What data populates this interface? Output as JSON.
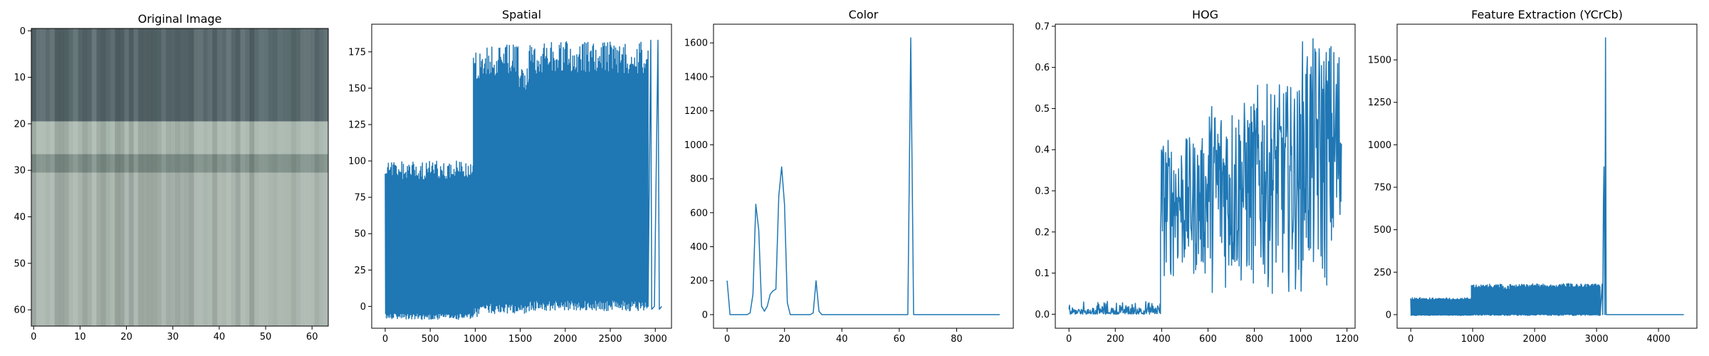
{
  "colors": {
    "series": "#1f77b4",
    "axis": "#000000",
    "background": "#ffffff"
  },
  "chart_data": [
    {
      "type": "image",
      "title": "Original Image",
      "xlim": [
        -0.5,
        63.5
      ],
      "ylim": [
        63.5,
        -0.5
      ],
      "xticks": [
        0,
        10,
        20,
        30,
        40,
        50,
        60
      ],
      "yticks": [
        0,
        10,
        20,
        30,
        40,
        50,
        60
      ],
      "image_bands": [
        {
          "y_from": 0,
          "y_to": 20,
          "color": "#56676b"
        },
        {
          "y_from": 20,
          "y_to": 27,
          "color": "#aab9b0"
        },
        {
          "y_from": 27,
          "y_to": 31,
          "color": "#7f9089"
        },
        {
          "y_from": 31,
          "y_to": 64,
          "color": "#a9b6ae"
        }
      ]
    },
    {
      "type": "line",
      "title": "Spatial",
      "xlim": [
        -150,
        3180
      ],
      "ylim": [
        -15,
        194
      ],
      "xticks": [
        0,
        500,
        1000,
        1500,
        2000,
        2500,
        3000
      ],
      "yticks": [
        0,
        25,
        50,
        75,
        100,
        125,
        150,
        175
      ],
      "series": [
        {
          "kind": "oscillating_band",
          "segments": [
            {
              "x": [
                0,
                980
              ],
              "low": -9,
              "high": 100
            },
            {
              "x": [
                980,
                1070
              ],
              "low": -7,
              "high": 178
            },
            {
              "x": [
                1070,
                1480
              ],
              "low": -5,
              "high": 180
            },
            {
              "x": [
                1480,
                1600
              ],
              "low": -5,
              "high": 168
            },
            {
              "x": [
                1600,
                2920
              ],
              "low": -3,
              "high": 182
            }
          ],
          "tail": [
            [
              2920,
              0
            ],
            [
              2950,
              183
            ],
            [
              2960,
              -2
            ],
            [
              2990,
              0
            ],
            [
              3030,
              183
            ],
            [
              3045,
              -2
            ],
            [
              3072,
              0
            ]
          ]
        }
      ]
    },
    {
      "type": "line",
      "title": "Color",
      "xlim": [
        -4.75,
        99.75
      ],
      "ylim": [
        -80,
        1710
      ],
      "xticks": [
        0,
        20,
        40,
        60,
        80
      ],
      "yticks": [
        0,
        200,
        400,
        600,
        800,
        1000,
        1200,
        1400,
        1600
      ],
      "series": [
        {
          "x": [
            0,
            1,
            2,
            3,
            4,
            5,
            6,
            7,
            8,
            9,
            10,
            11,
            12,
            13,
            14,
            15,
            16,
            17,
            18,
            19,
            20,
            21,
            22,
            23,
            24,
            25,
            26,
            27,
            28,
            29,
            30,
            31,
            32,
            33,
            34,
            62,
            63,
            64,
            65,
            66,
            95
          ],
          "y": [
            200,
            0,
            0,
            0,
            0,
            0,
            0,
            0,
            10,
            120,
            650,
            500,
            50,
            20,
            50,
            120,
            140,
            150,
            700,
            870,
            650,
            70,
            0,
            0,
            0,
            0,
            0,
            0,
            0,
            0,
            10,
            200,
            20,
            0,
            0,
            0,
            0,
            1630,
            0,
            0,
            0
          ]
        }
      ]
    },
    {
      "type": "line",
      "title": "HOG",
      "xlim": [
        -59,
        1235
      ],
      "ylim": [
        -0.034,
        0.705
      ],
      "xticks": [
        0,
        200,
        400,
        600,
        800,
        1000,
        1200
      ],
      "yticks": [
        0.0,
        0.1,
        0.2,
        0.3,
        0.4,
        0.5,
        0.6,
        0.7
      ],
      "series": [
        {
          "kind": "noisy_segments",
          "segments": [
            {
              "x": [
                0,
                395
              ],
              "low": 0.0,
              "high": 0.035
            },
            {
              "x": [
                395,
                600
              ],
              "low": 0.08,
              "high": 0.43
            },
            {
              "x": [
                600,
                800
              ],
              "low": 0.05,
              "high": 0.52
            },
            {
              "x": [
                800,
                1000
              ],
              "low": 0.05,
              "high": 0.56
            },
            {
              "x": [
                1000,
                1176
              ],
              "low": 0.05,
              "high": 0.67
            }
          ]
        }
      ]
    },
    {
      "type": "line",
      "title": "Feature Extraction (YCrCb)",
      "xlim": [
        -220,
        4620
      ],
      "ylim": [
        -80,
        1710
      ],
      "xticks": [
        0,
        1000,
        2000,
        3000,
        4000
      ],
      "yticks": [
        0,
        250,
        500,
        750,
        1000,
        1250,
        1500
      ],
      "series": [
        {
          "kind": "oscillating_band",
          "segments": [
            {
              "x": [
                0,
                980
              ],
              "low": -5,
              "high": 100
            },
            {
              "x": [
                980,
                1480
              ],
              "low": -5,
              "high": 180
            },
            {
              "x": [
                1480,
                1600
              ],
              "low": -5,
              "high": 168
            },
            {
              "x": [
                1600,
                3060
              ],
              "low": -5,
              "high": 182
            }
          ],
          "tail": [
            [
              3060,
              0
            ],
            [
              3090,
              180
            ],
            [
              3100,
              0
            ],
            [
              3110,
              650
            ],
            [
              3120,
              870
            ],
            [
              3135,
              0
            ],
            [
              3145,
              1630
            ],
            [
              3155,
              0
            ],
            [
              3170,
              0
            ],
            [
              4409,
              0
            ]
          ]
        }
      ]
    }
  ]
}
